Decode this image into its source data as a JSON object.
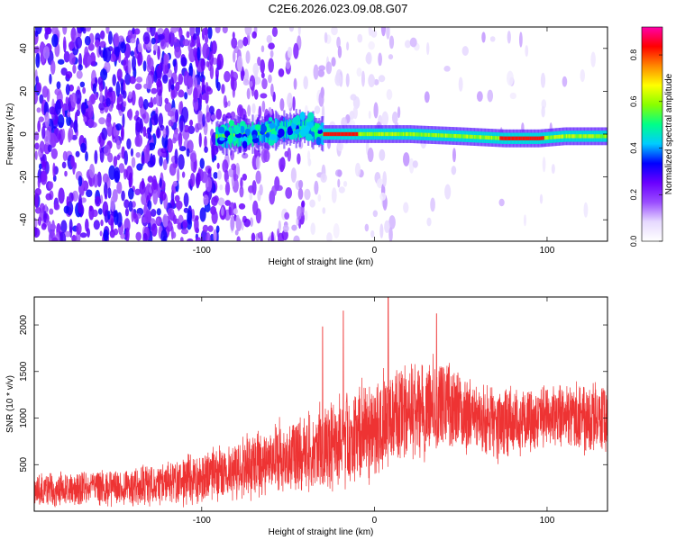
{
  "title": "C2E6.2026.023.09.08.G07",
  "chart_data": [
    {
      "type": "heatmap",
      "xlabel": "Height of straight line (km)",
      "ylabel": "Frequency (Hz)",
      "xlim": [
        -197,
        135
      ],
      "ylim": [
        -50,
        50
      ],
      "xticks": [
        -100,
        0,
        100
      ],
      "yticks": [
        -40,
        -20,
        0,
        20,
        40
      ],
      "colorbar": {
        "label": "Normalized spectral amplitude",
        "range": [
          0,
          0.92
        ],
        "ticks": [
          0.0,
          0.2,
          0.4,
          0.6,
          0.8
        ],
        "tick_labels": [
          "0.0",
          "0.2",
          "0.4",
          "0.6",
          "0.8"
        ],
        "colors": [
          "#ffffff",
          "#e6d9ff",
          "#9a4dff",
          "#6a00ff",
          "#0000ff",
          "#00ccff",
          "#00ff88",
          "#88ff00",
          "#ffff00",
          "#ff8800",
          "#ff0000",
          "#ff00aa"
        ]
      },
      "ridge": {
        "description_points_x": [
          -90,
          -70,
          -55,
          -40,
          -30,
          -20,
          0,
          20,
          50,
          75,
          95,
          110,
          135
        ],
        "description_points_y": [
          -1,
          0,
          2,
          3,
          0,
          0,
          0,
          0,
          -1,
          -2,
          -2,
          -1,
          -1
        ]
      }
    },
    {
      "type": "line",
      "xlabel": "Height of straight line (km)",
      "ylabel": "SNR (10 * v/v)",
      "xlim": [
        -197,
        135
      ],
      "ylim": [
        0,
        2300
      ],
      "xticks": [
        -100,
        0,
        100
      ],
      "yticks": [
        500,
        1000,
        1500,
        2000
      ],
      "color": "#ee3333",
      "envelope": {
        "x": [
          -197,
          -170,
          -140,
          -110,
          -90,
          -70,
          -55,
          -40,
          -25,
          -10,
          0,
          10,
          20,
          30,
          40,
          55,
          70,
          90,
          110,
          135
        ],
        "mean": [
          220,
          240,
          260,
          320,
          390,
          480,
          560,
          620,
          720,
          820,
          900,
          1000,
          1060,
          1120,
          1180,
          1020,
          960,
          980,
          1000,
          1020
        ],
        "spread": [
          180,
          190,
          200,
          260,
          300,
          360,
          380,
          420,
          480,
          520,
          560,
          560,
          540,
          520,
          500,
          400,
          380,
          380,
          380,
          380
        ]
      },
      "peaks": [
        {
          "x": -30,
          "y": 1980
        },
        {
          "x": -18,
          "y": 2150
        },
        {
          "x": 8,
          "y": 2300
        },
        {
          "x": 36,
          "y": 2120
        }
      ]
    }
  ]
}
